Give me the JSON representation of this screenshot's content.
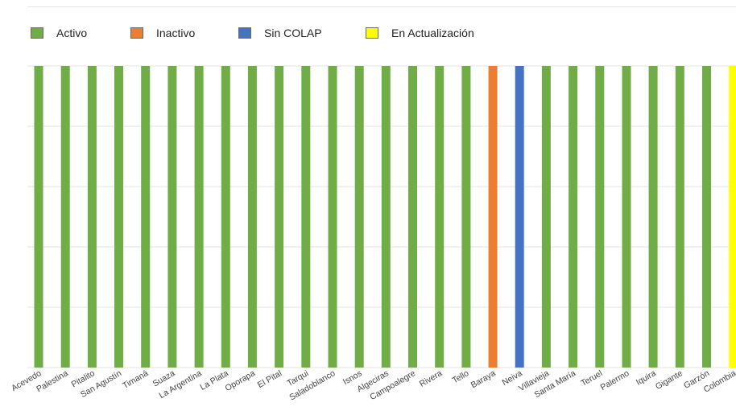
{
  "chart_data": {
    "type": "bar",
    "legend_position": "top-left",
    "grid": true,
    "ylim": [
      0,
      1
    ],
    "legend": [
      {
        "key": "activo",
        "label": "Activo",
        "color": "#70ad47"
      },
      {
        "key": "inactivo",
        "label": "Inactivo",
        "color": "#ed7d31"
      },
      {
        "key": "sin_colap",
        "label": "Sin COLAP",
        "color": "#4472c4"
      },
      {
        "key": "en_actualizacion",
        "label": "En Actualización",
        "color": "#ffff00"
      }
    ],
    "categories": [
      "Acevedo",
      "Palestina",
      "Pitalito",
      "San Agustín",
      "Timaná",
      "Suaza",
      "La Argentina",
      "La Plata",
      "Oporapa",
      "El Pital",
      "Tarqui",
      "Saladoblanco",
      "Isnos",
      "Algeciras",
      "Campoalegre",
      "Rivera",
      "Tello",
      "Baraya",
      "Neiva",
      "Villavieja",
      "Santa María",
      "Teruel",
      "Palermo",
      "Iquira",
      "Gigante",
      "Garzón",
      "Colombia"
    ],
    "status": [
      "activo",
      "activo",
      "activo",
      "activo",
      "activo",
      "activo",
      "activo",
      "activo",
      "activo",
      "activo",
      "activo",
      "activo",
      "activo",
      "activo",
      "activo",
      "activo",
      "activo",
      "inactivo",
      "sin_colap",
      "activo",
      "activo",
      "activo",
      "activo",
      "activo",
      "activo",
      "activo",
      "en_actualizacion"
    ],
    "values": [
      1,
      1,
      1,
      1,
      1,
      1,
      1,
      1,
      1,
      1,
      1,
      1,
      1,
      1,
      1,
      1,
      1,
      1,
      1,
      1,
      1,
      1,
      1,
      1,
      1,
      1,
      1
    ]
  }
}
